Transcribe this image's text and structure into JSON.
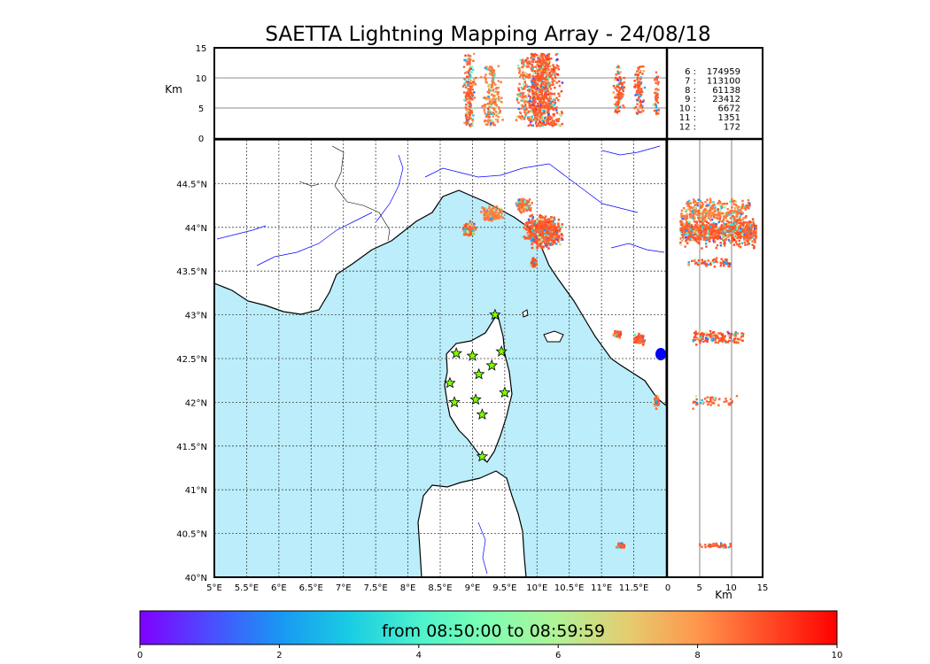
{
  "title": "SAETTA Lightning Mapping Array - 24/08/18",
  "units": {
    "alt": "Km",
    "xbottom": "Km"
  },
  "stations_legend": [
    {
      "label": "6  :",
      "value": "174959",
      "color": "#000000"
    },
    {
      "label": "7  :",
      "value": "113100",
      "color": "#ff0000"
    },
    {
      "label": "8  :",
      "value": "61138",
      "color": "#000000"
    },
    {
      "label": "9  :",
      "value": "23412",
      "color": "#000000"
    },
    {
      "label": "10 :",
      "value": "6672",
      "color": "#000000"
    },
    {
      "label": "11 :",
      "value": "1351",
      "color": "#000000"
    },
    {
      "label": "12 :",
      "value": "172",
      "color": "#000000"
    }
  ],
  "colorbar": {
    "label": "from 08:50:00 to 08:59:59",
    "ticks": [
      "0",
      "2",
      "4",
      "6",
      "8",
      "10"
    ],
    "colors": [
      "#7f00ff",
      "#4c4cff",
      "#1996f3",
      "#19cce3",
      "#4cf2ce",
      "#7ffeb2",
      "#b2f295",
      "#e5cc70",
      "#ff964c",
      "#ff4c26",
      "#ff0000"
    ]
  },
  "colors": {
    "sea": "#bbeefa",
    "strike": "#ff4f27",
    "station": "#7fff00"
  },
  "chart_data": {
    "type": "scatter",
    "map": {
      "lon_range": [
        5,
        12
      ],
      "lat_range": [
        40,
        45
      ],
      "lon_ticks": [
        "5°E",
        "5.5°E",
        "6°E",
        "6.5°E",
        "7°E",
        "7.5°E",
        "8°E",
        "8.5°E",
        "9°E",
        "9.5°E",
        "10°E",
        "10.5°E",
        "11°E",
        "11.5°E"
      ],
      "lat_ticks": [
        "40°N",
        "40.5°N",
        "41°N",
        "41.5°N",
        "42°N",
        "42.5°N",
        "43°N",
        "43.5°N",
        "44°N",
        "44.5°N"
      ],
      "grid": true
    },
    "altitude_panel": {
      "ylim": [
        0,
        15
      ],
      "yticks": [
        "0",
        "5",
        "10",
        "15"
      ]
    },
    "side_panel": {
      "xlim": [
        0,
        15
      ],
      "xticks": [
        "0",
        "5",
        "10",
        "15"
      ]
    },
    "stations": [
      {
        "lon": 9.35,
        "lat": 43.0
      },
      {
        "lon": 8.75,
        "lat": 42.56
      },
      {
        "lon": 9.0,
        "lat": 42.53
      },
      {
        "lon": 9.45,
        "lat": 42.58
      },
      {
        "lon": 9.3,
        "lat": 42.42
      },
      {
        "lon": 9.1,
        "lat": 42.32
      },
      {
        "lon": 8.65,
        "lat": 42.22
      },
      {
        "lon": 9.05,
        "lat": 42.03
      },
      {
        "lon": 8.72,
        "lat": 42.0
      },
      {
        "lon": 9.5,
        "lat": 42.11
      },
      {
        "lon": 9.15,
        "lat": 41.86
      },
      {
        "lon": 9.15,
        "lat": 41.38
      }
    ],
    "clusters": [
      {
        "lon": 10.1,
        "lat": 43.95,
        "lon_spread": 0.35,
        "lat_spread": 0.22,
        "alt": [
          2,
          14
        ],
        "n": 700,
        "hue": 0.85
      },
      {
        "lon": 9.3,
        "lat": 44.15,
        "lon_spread": 0.2,
        "lat_spread": 0.1,
        "alt": [
          2,
          12
        ],
        "n": 200,
        "hue": 0.55
      },
      {
        "lon": 9.8,
        "lat": 44.25,
        "lon_spread": 0.15,
        "lat_spread": 0.1,
        "alt": [
          3,
          13
        ],
        "n": 120,
        "hue": 0.65
      },
      {
        "lon": 8.95,
        "lat": 43.98,
        "lon_spread": 0.12,
        "lat_spread": 0.1,
        "alt": [
          2,
          14
        ],
        "n": 180,
        "hue": 0.8
      },
      {
        "lon": 9.95,
        "lat": 43.6,
        "lon_spread": 0.06,
        "lat_spread": 0.07,
        "alt": [
          3,
          10
        ],
        "n": 60,
        "hue": 0.9
      },
      {
        "lon": 11.25,
        "lat": 42.78,
        "lon_spread": 0.08,
        "lat_spread": 0.05,
        "alt": [
          4,
          12
        ],
        "n": 60,
        "hue": 0.9
      },
      {
        "lon": 11.58,
        "lat": 42.72,
        "lon_spread": 0.1,
        "lat_spread": 0.07,
        "alt": [
          4,
          12
        ],
        "n": 90,
        "hue": 0.88
      },
      {
        "lon": 11.85,
        "lat": 42.0,
        "lon_spread": 0.05,
        "lat_spread": 0.1,
        "alt": [
          4,
          11
        ],
        "n": 50,
        "hue": 0.8
      },
      {
        "lon": 11.3,
        "lat": 40.36,
        "lon_spread": 0.08,
        "lat_spread": 0.04,
        "alt": [
          5,
          10
        ],
        "n": 40,
        "hue": 0.85
      }
    ]
  }
}
